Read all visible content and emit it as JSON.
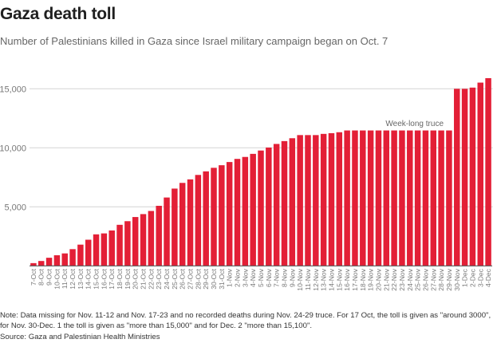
{
  "chart_data": {
    "type": "bar",
    "title": "Gaza death toll",
    "subtitle": "Number of Palestinians killed in Gaza since Israel military campaign began on Oct. 7",
    "xlabel": "",
    "ylabel": "",
    "ylim": [
      0,
      16000
    ],
    "yticks": [
      5000,
      10000,
      15000
    ],
    "ytick_labels": [
      "5,000",
      "10,000",
      "15,000"
    ],
    "grid": true,
    "bar_color": "#e31f36",
    "annotation": {
      "text": "Week-long truce",
      "anchor_category": "28-Nov"
    },
    "categories": [
      "7-Oct",
      "8-Oct",
      "9-Oct",
      "10-Oct",
      "11-Oct",
      "12-Oct",
      "13-Oct",
      "14-Oct",
      "15-Oct",
      "16-Oct",
      "17-Oct",
      "18-Oct",
      "19-Oct",
      "20-Oct",
      "21-Oct",
      "22-Oct",
      "23-Oct",
      "24-Oct",
      "25-Oct",
      "26-Oct",
      "27-Oct",
      "28-Oct",
      "29-Oct",
      "30-Oct",
      "31-Oct",
      "1-Nov",
      "2-Nov",
      "3-Nov",
      "4-Nov",
      "5-Nov",
      "6-Nov",
      "7-Nov",
      "8-Nov",
      "9-Nov",
      "10-Nov",
      "11-Nov",
      "12-Nov",
      "13-Nov",
      "14-Nov",
      "15-Nov",
      "16-Nov",
      "17-Nov",
      "18-Nov",
      "19-Nov",
      "20-Nov",
      "21-Nov",
      "22-Nov",
      "23-Nov",
      "24-Nov",
      "25-Nov",
      "26-Nov",
      "27-Nov",
      "28-Nov",
      "29-Nov",
      "30-Nov",
      "1-Dec",
      "2-Dec",
      "3-Dec",
      "4-Dec"
    ],
    "values": [
      232,
      413,
      687,
      900,
      1055,
      1417,
      1799,
      2215,
      2670,
      2750,
      3000,
      3478,
      3785,
      4137,
      4385,
      4651,
      5087,
      5791,
      6546,
      7028,
      7326,
      7703,
      8005,
      8306,
      8525,
      8796,
      9061,
      9227,
      9488,
      9770,
      10022,
      10328,
      10569,
      10812,
      11078,
      11078,
      11078,
      11180,
      11240,
      11320,
      11470,
      11470,
      11470,
      11470,
      11470,
      11470,
      11470,
      11470,
      11470,
      11470,
      11470,
      11470,
      11470,
      11470,
      15000,
      15000,
      15100,
      15523,
      15899
    ]
  },
  "footer": {
    "note": "Note: Data missing for Nov. 11-12 and Nov. 17-23 and no recorded deaths during Nov. 24-29 truce. For 17 Oct, the toll is given as \"around 3000\", for Nov. 30-Dec. 1 the toll is given as \"more than 15,000\" and for Dec. 2 \"more than 15,100\".",
    "source": "Source: Gaza and Palestinian Health Ministries"
  }
}
